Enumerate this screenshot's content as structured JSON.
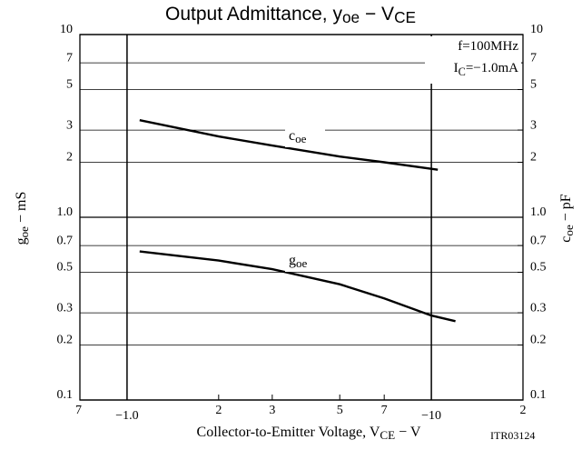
{
  "chart_data": {
    "type": "line",
    "title": [
      "Output Admittance, y",
      "oe",
      " − V",
      "CE"
    ],
    "annotations": [
      [
        "f=100MHz"
      ],
      [
        "I",
        "C",
        "=−1.0mA"
      ]
    ],
    "xlabel": [
      "Collector-to-Emitter Voltage, V",
      "CE",
      " − V"
    ],
    "ylabel": [
      "g",
      "oe",
      " − mS"
    ],
    "y2label": [
      "c",
      "oe",
      " − pF"
    ],
    "figure_code": "ITR03124",
    "xscale": "log",
    "yscale": "log",
    "xlim": [
      0.7,
      20
    ],
    "xticks": [
      {
        "value": 0.7,
        "label": "7"
      },
      {
        "value": 1,
        "label": "−1.0"
      },
      2,
      3,
      5,
      7,
      {
        "value": 10,
        "label": "−10"
      },
      {
        "value": 20,
        "label": "2"
      }
    ],
    "ylim": [
      0.1,
      10
    ],
    "yticks": [
      0.1,
      0.2,
      0.3,
      0.5,
      0.7,
      {
        "value": 1,
        "label": "1.0"
      },
      2,
      3,
      5,
      7,
      10
    ],
    "y2lim": [
      0.1,
      10
    ],
    "y2ticks": [
      0.1,
      0.2,
      0.3,
      0.5,
      0.7,
      {
        "value": 1,
        "label": "1.0"
      },
      2,
      3,
      5,
      7,
      10
    ],
    "grid": true,
    "series": [
      {
        "name": [
          "c",
          "oe"
        ],
        "color": "#000000",
        "axis": "y2",
        "x": [
          1.1,
          2,
          3,
          5,
          7,
          10.5
        ],
        "values": [
          3.4,
          2.77,
          2.47,
          2.15,
          2.0,
          1.82
        ]
      },
      {
        "name": [
          "g",
          "oe"
        ],
        "color": "#000000",
        "x": [
          1.1,
          2,
          3,
          5,
          7,
          10,
          12
        ],
        "values": [
          0.65,
          0.58,
          0.52,
          0.43,
          0.36,
          0.29,
          0.27
        ]
      }
    ]
  }
}
